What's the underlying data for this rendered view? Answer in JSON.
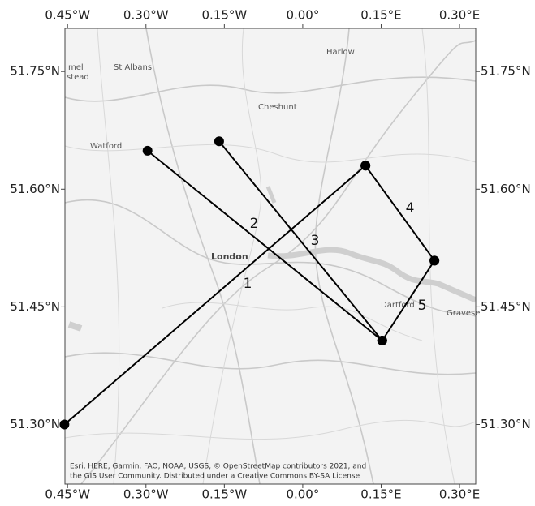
{
  "chart_data": {
    "type": "route-map",
    "xlim": [
      -0.455,
      0.331
    ],
    "ylim": [
      51.224,
      51.805
    ],
    "xticks": [
      {
        "value": -0.45,
        "label": "0.45°W"
      },
      {
        "value": -0.3,
        "label": "0.30°W"
      },
      {
        "value": -0.15,
        "label": "0.15°W"
      },
      {
        "value": 0,
        "label": "0.00°"
      },
      {
        "value": 0.15,
        "label": "0.15°E"
      },
      {
        "value": 0.3,
        "label": "0.30°E"
      }
    ],
    "yticks": [
      {
        "value": 51.75,
        "label": "51.75°N"
      },
      {
        "value": 51.6,
        "label": "51.60°N"
      },
      {
        "value": 51.45,
        "label": "51.45°N"
      },
      {
        "value": 51.3,
        "label": "51.30°N"
      }
    ],
    "color": "#000000",
    "series": [
      {
        "name": "1",
        "x": [
          -0.456,
          0.12
        ],
        "y": [
          51.3,
          51.63
        ]
      },
      {
        "name": "2",
        "x": [
          -0.297,
          0.152
        ],
        "y": [
          51.649,
          51.407
        ]
      },
      {
        "name": "3",
        "x": [
          -0.16,
          0.152
        ],
        "y": [
          51.661,
          51.407
        ]
      },
      {
        "name": "4",
        "x": [
          0.12,
          0.252
        ],
        "y": [
          51.63,
          51.509
        ]
      },
      {
        "name": "5",
        "x": [
          0.252,
          0.152
        ],
        "y": [
          51.509,
          51.407
        ]
      }
    ],
    "places": [
      "mel",
      "stead",
      "St Albans",
      "Harlow",
      "Cheshunt",
      "Watford",
      "London",
      "Dartford",
      "Gravese"
    ],
    "attribution": [
      "Esri, HERE, Garmin, FAO, NOAA, USGS, © OpenStreetMap contributors 2021, and",
      "the GIS User Community. Distributed under a Creative Commons BY-SA License"
    ]
  }
}
